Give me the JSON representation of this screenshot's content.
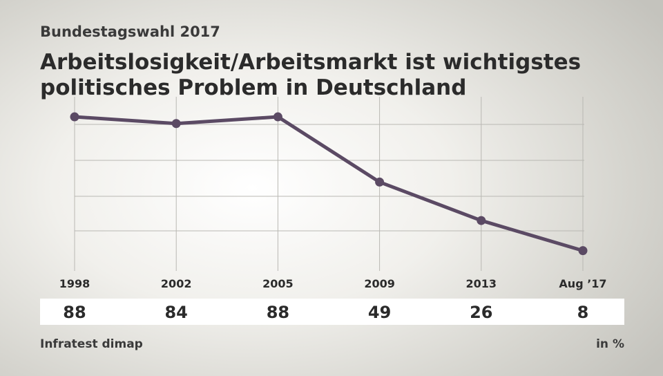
{
  "header": {
    "kicker": "Bundestagswahl 2017",
    "title_line1": "Arbeitslosigkeit/Arbeitsmarkt ist wichtigstes",
    "title_line2": "politisches Problem in Deutschland"
  },
  "footer": {
    "source": "Infratest dimap",
    "unit": "in %"
  },
  "colors": {
    "line": "#5b4a64",
    "grid": "#b9b8b3",
    "text": "#2b2b2b"
  },
  "chart_data": {
    "type": "line",
    "title": "Arbeitslosigkeit/Arbeitsmarkt ist wichtigstes politisches Problem in Deutschland",
    "categories": [
      "1998",
      "2002",
      "2005",
      "2009",
      "2013",
      "Aug ’17"
    ],
    "series": [
      {
        "values": [
          88,
          84,
          88,
          49,
          26,
          8
        ]
      }
    ],
    "value_labels": [
      "88",
      "84",
      "88",
      "49",
      "26",
      "8"
    ],
    "ylim": [
      0,
      100
    ],
    "grid": true,
    "legend": "none"
  }
}
